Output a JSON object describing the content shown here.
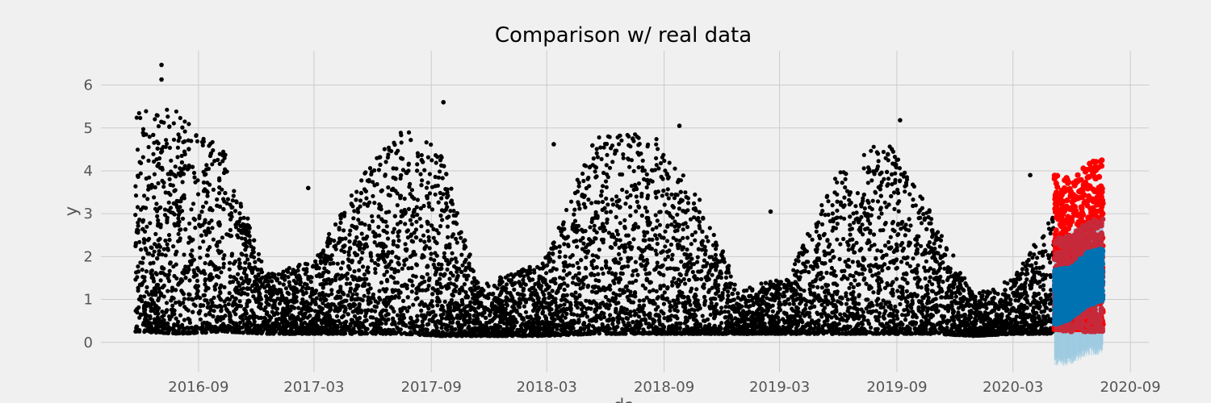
{
  "chart_data": {
    "type": "scatter",
    "title": "Comparison w/ real data",
    "xlabel": "ds",
    "ylabel": "y",
    "x_ticks": [
      "2016-09",
      "2017-03",
      "2017-09",
      "2018-03",
      "2018-09",
      "2019-03",
      "2019-09",
      "2020-03",
      "2020-09"
    ],
    "y_ticks": [
      "0",
      "1",
      "2",
      "3",
      "4",
      "5",
      "6"
    ],
    "xlim": [
      "2016-04-01",
      "2020-09-30"
    ],
    "ylim": [
      -0.7,
      6.8
    ],
    "grid": true,
    "colors": {
      "observed": "#000000",
      "actual_future": "#ff0000",
      "forecast": "#0072b2",
      "forecast_interval": "#9ecae1",
      "overlap": "#c62a3a",
      "background": "#f0f0f0",
      "grid": "#cbcbcb"
    },
    "series": [
      {
        "role": "observed",
        "x_range": [
          "2016-05-25",
          "2020-05-04"
        ],
        "envelope": [
          {
            "x": "2016-06-01",
            "low": 0.25,
            "high": 5.5
          },
          {
            "x": "2016-08-01",
            "low": 0.2,
            "high": 5.4
          },
          {
            "x": "2016-10-15",
            "low": 0.25,
            "high": 4.5
          },
          {
            "x": "2016-12-15",
            "low": 0.2,
            "high": 1.6
          },
          {
            "x": "2017-03-01",
            "low": 0.2,
            "high": 1.9
          },
          {
            "x": "2017-05-15",
            "low": 0.2,
            "high": 3.9
          },
          {
            "x": "2017-07-15",
            "low": 0.2,
            "high": 5.0
          },
          {
            "x": "2017-09-15",
            "low": 0.15,
            "high": 4.5
          },
          {
            "x": "2017-11-15",
            "low": 0.15,
            "high": 1.3
          },
          {
            "x": "2018-03-01",
            "low": 0.15,
            "high": 2.0
          },
          {
            "x": "2018-05-15",
            "low": 0.2,
            "high": 4.8
          },
          {
            "x": "2018-08-15",
            "low": 0.2,
            "high": 4.9
          },
          {
            "x": "2018-10-30",
            "low": 0.2,
            "high": 3.3
          },
          {
            "x": "2018-12-30",
            "low": 0.2,
            "high": 1.2
          },
          {
            "x": "2019-03-15",
            "low": 0.2,
            "high": 1.6
          },
          {
            "x": "2019-06-01",
            "low": 0.2,
            "high": 4.0
          },
          {
            "x": "2019-08-15",
            "low": 0.2,
            "high": 4.8
          },
          {
            "x": "2019-10-30",
            "low": 0.2,
            "high": 2.9
          },
          {
            "x": "2019-12-30",
            "low": 0.15,
            "high": 1.1
          },
          {
            "x": "2020-03-01",
            "low": 0.2,
            "high": 1.5
          },
          {
            "x": "2020-05-04",
            "low": 0.2,
            "high": 3.0
          }
        ],
        "highlights": [
          {
            "x": "2016-07-05",
            "y": 6.47
          },
          {
            "x": "2016-07-05",
            "y": 6.13
          },
          {
            "x": "2017-09-20",
            "y": 5.6
          },
          {
            "x": "2019-09-06",
            "y": 5.18
          },
          {
            "x": "2018-09-25",
            "y": 5.05
          },
          {
            "x": "2018-03-12",
            "y": 4.62
          },
          {
            "x": "2020-03-28",
            "y": 3.9
          },
          {
            "x": "2017-02-20",
            "y": 3.6
          },
          {
            "x": "2019-02-15",
            "y": 3.05
          }
        ]
      },
      {
        "role": "actual_future",
        "x_range": [
          "2020-05-05",
          "2020-07-20"
        ],
        "envelope": [
          {
            "x": "2020-05-05",
            "low": 0.3,
            "high": 4.0
          },
          {
            "x": "2020-06-05",
            "low": 0.3,
            "high": 3.8
          },
          {
            "x": "2020-07-01",
            "low": 0.3,
            "high": 4.3
          },
          {
            "x": "2020-07-20",
            "low": 0.3,
            "high": 4.25
          }
        ]
      },
      {
        "role": "forecast",
        "x_range": [
          "2020-05-05",
          "2020-07-20"
        ],
        "lower": [
          {
            "x": "2020-05-05",
            "y": 0.4
          },
          {
            "x": "2020-06-01",
            "y": 0.55
          },
          {
            "x": "2020-06-25",
            "y": 0.85
          },
          {
            "x": "2020-07-20",
            "y": 0.95
          }
        ],
        "upper": [
          {
            "x": "2020-05-05",
            "y": 1.7
          },
          {
            "x": "2020-06-01",
            "y": 1.75
          },
          {
            "x": "2020-06-25",
            "y": 2.1
          },
          {
            "x": "2020-07-20",
            "y": 2.2
          }
        ]
      },
      {
        "role": "forecast_interval",
        "x_range": [
          "2020-05-05",
          "2020-07-20"
        ],
        "lower": [
          {
            "x": "2020-05-05",
            "y": -0.45
          },
          {
            "x": "2020-06-01",
            "y": -0.4
          },
          {
            "x": "2020-06-25",
            "y": -0.2
          },
          {
            "x": "2020-07-20",
            "y": -0.15
          }
        ],
        "upper": [
          {
            "x": "2020-05-05",
            "y": 2.45
          },
          {
            "x": "2020-06-01",
            "y": 2.5
          },
          {
            "x": "2020-06-25",
            "y": 2.85
          },
          {
            "x": "2020-07-20",
            "y": 2.9
          }
        ]
      }
    ]
  }
}
